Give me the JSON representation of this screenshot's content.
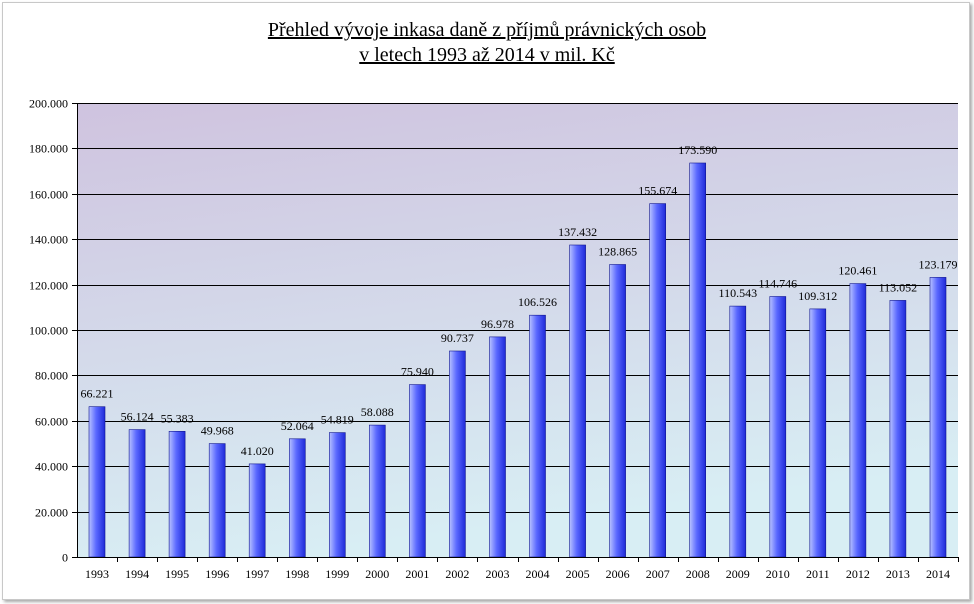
{
  "chart_data": {
    "type": "bar",
    "title": "Přehled vývoje inkasa daně z příjmů právnických osob",
    "subtitle": "v letech 1993 až 2014 v mil. Kč",
    "xlabel": "",
    "ylabel": "",
    "ylim": [
      0,
      200000
    ],
    "yticks": [
      0,
      20000,
      40000,
      60000,
      80000,
      100000,
      120000,
      140000,
      160000,
      180000,
      200000
    ],
    "ytick_labels": [
      "0",
      "20.000",
      "40.000",
      "60.000",
      "80.000",
      "100.000",
      "120.000",
      "140.000",
      "160.000",
      "180.000",
      "200.000"
    ],
    "grid": true,
    "legend": "none",
    "categories": [
      "1993",
      "1994",
      "1995",
      "1996",
      "1997",
      "1998",
      "1999",
      "2000",
      "2001",
      "2002",
      "2003",
      "2004",
      "2005",
      "2006",
      "2007",
      "2008",
      "2009",
      "2010",
      "2011",
      "2012",
      "2013",
      "2014"
    ],
    "values": [
      66221,
      56124,
      55383,
      49968,
      41020,
      52064,
      54819,
      58088,
      75940,
      90737,
      96978,
      106526,
      137432,
      128865,
      155674,
      173590,
      110543,
      114746,
      109312,
      120461,
      113052,
      123179
    ],
    "data_labels": [
      "66.221",
      "56.124",
      "55.383",
      "49.968",
      "41.020",
      "52.064",
      "54.819",
      "58.088",
      "75.940",
      "90.737",
      "96.978",
      "106.526",
      "137.432",
      "128.865",
      "155.674",
      "173.590",
      "110.543",
      "114.746",
      "109.312",
      "120.461",
      "113.052",
      "123.179"
    ],
    "colors": {
      "bar_light": "#b8c2ff",
      "bar_mid": "#5a68ff",
      "bar_dark": "#1f2ad8",
      "bar_edge": "#10168f",
      "plot_bg_top": "#cfc3df",
      "plot_bg_bottom": "#d8eef4",
      "gridline": "#000000"
    }
  }
}
